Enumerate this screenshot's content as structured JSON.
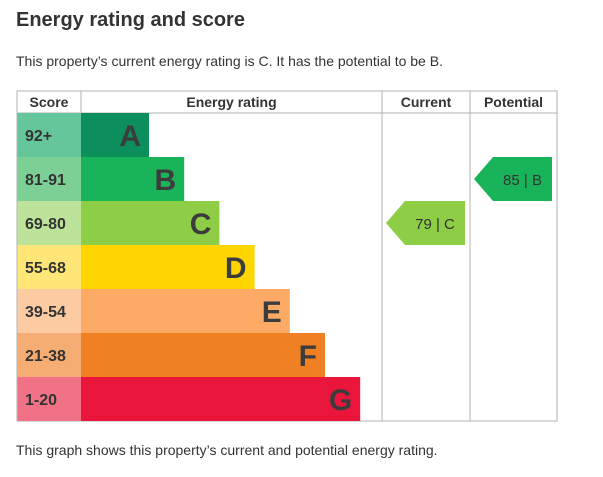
{
  "page": {
    "title": "Energy rating and score",
    "intro": "This property’s current energy rating is C. It has the potential to be B.",
    "footer": "This graph shows this property’s current and potential energy rating."
  },
  "chart_data": {
    "type": "bar",
    "headers": {
      "score": "Score",
      "rating": "Energy rating",
      "current": "Current",
      "potential": "Potential"
    },
    "bands": [
      {
        "score": "92+",
        "letter": "A",
        "color": "#0c8f5c",
        "score_bg": "#66c69b"
      },
      {
        "score": "81-91",
        "letter": "B",
        "color": "#19b459",
        "score_bg": "#7ccf95"
      },
      {
        "score": "69-80",
        "letter": "C",
        "color": "#8dce46",
        "score_bg": "#bde39a"
      },
      {
        "score": "55-68",
        "letter": "D",
        "color": "#ffd500",
        "score_bg": "#ffe676"
      },
      {
        "score": "39-54",
        "letter": "E",
        "color": "#fcaa65",
        "score_bg": "#fdcba2"
      },
      {
        "score": "21-38",
        "letter": "F",
        "color": "#ef8023",
        "score_bg": "#f5ad74"
      },
      {
        "score": "1-20",
        "letter": "G",
        "color": "#e9153b",
        "score_bg": "#f17287"
      }
    ],
    "current": {
      "label": "79 | C",
      "band": "C",
      "color": "#8dce46"
    },
    "potential": {
      "label": "85 | B",
      "band": "B",
      "color": "#19b459"
    }
  }
}
